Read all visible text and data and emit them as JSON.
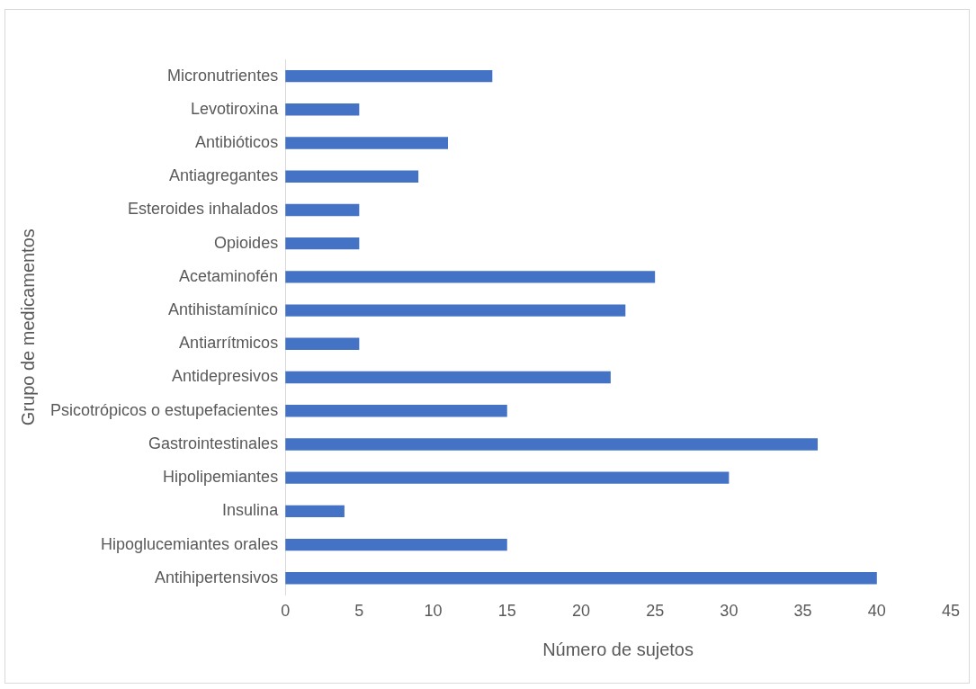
{
  "chart_data": {
    "type": "bar",
    "orientation": "horizontal",
    "xlabel": "Número de sujetos",
    "ylabel": "Grupo de medicamentos",
    "categories": [
      "Micronutrientes",
      "Levotiroxina",
      "Antibióticos",
      "Antiagregantes",
      "Esteroides inhalados",
      "Opioides",
      "Acetaminofén",
      "Antihistamínico",
      "Antiarrítmicos",
      "Antidepresivos",
      "Psicotrópicos o estupefacientes",
      "Gastrointestinales",
      "Hipolipemiantes",
      "Insulina",
      "Hipoglucemiantes orales",
      "Antihipertensivos"
    ],
    "values": [
      14,
      5,
      11,
      9,
      5,
      5,
      25,
      23,
      5,
      22,
      15,
      36,
      30,
      4,
      15,
      40
    ],
    "color": "#4472c4",
    "xlim": [
      0,
      45
    ],
    "xticks": [
      0,
      5,
      10,
      15,
      20,
      25,
      30,
      35,
      40,
      45
    ],
    "grid": false,
    "legend": false
  }
}
